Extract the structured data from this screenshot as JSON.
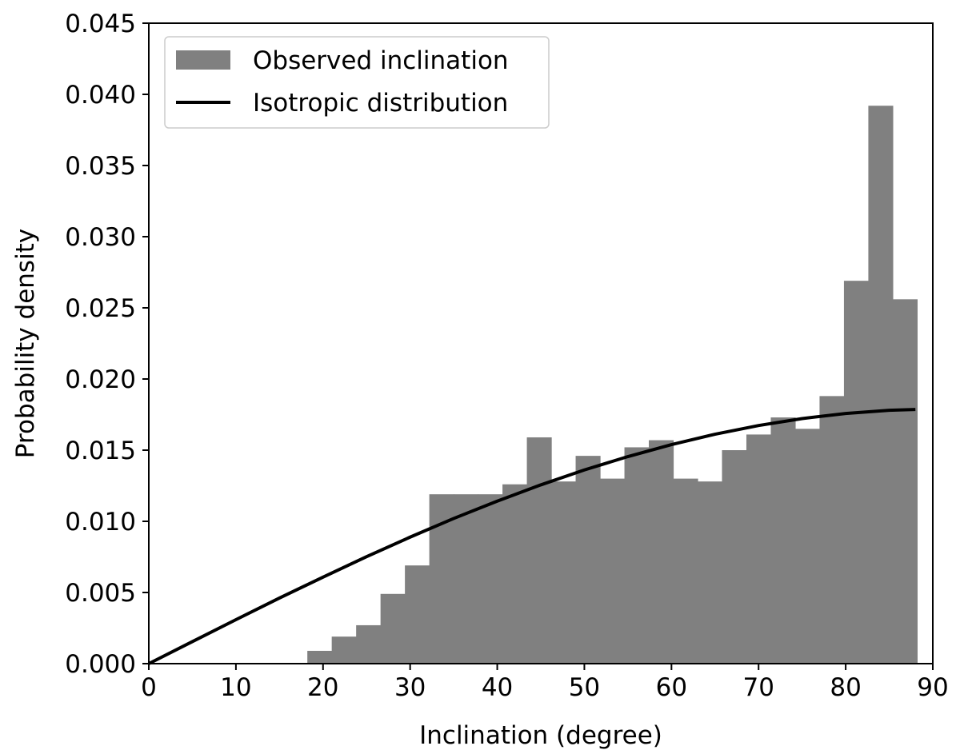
{
  "chart_data": {
    "type": "bar",
    "title": "",
    "xlabel": "Inclination (degree)",
    "ylabel": "Probability density",
    "xlim": [
      0,
      90
    ],
    "ylim": [
      0,
      0.045
    ],
    "xticks": [
      0,
      10,
      20,
      30,
      40,
      50,
      60,
      70,
      80,
      90
    ],
    "xtick_labels": [
      "0",
      "10",
      "20",
      "30",
      "40",
      "50",
      "60",
      "70",
      "80",
      "90"
    ],
    "yticks": [
      0,
      0.005,
      0.01,
      0.015,
      0.02,
      0.025,
      0.03,
      0.035,
      0.04,
      0.045
    ],
    "ytick_labels": [
      "0.000",
      "0.005",
      "0.010",
      "0.015",
      "0.020",
      "0.025",
      "0.030",
      "0.035",
      "0.040",
      "0.045"
    ],
    "grid": false,
    "legend_position": "top-left",
    "legend": [
      {
        "label": "Observed inclination",
        "kind": "patch",
        "color": "#808080"
      },
      {
        "label": "Isotropic distribution",
        "kind": "line",
        "color": "#000000"
      }
    ],
    "histogram": {
      "series_name": "Observed inclination",
      "color": "#808080",
      "bin_width": 2.8,
      "bin_starts": [
        18.2,
        21.0,
        23.8,
        26.6,
        29.4,
        32.2,
        35.0,
        37.8,
        40.6,
        43.4,
        46.2,
        49.0,
        51.8,
        54.6,
        57.4,
        60.2,
        63.0,
        65.8,
        68.6,
        71.4,
        74.2,
        77.0,
        79.8,
        82.6,
        85.4
      ],
      "values": [
        0.0009,
        0.0019,
        0.0027,
        0.0049,
        0.0069,
        0.0119,
        0.0119,
        0.0119,
        0.0126,
        0.0159,
        0.0128,
        0.0146,
        0.013,
        0.0152,
        0.0157,
        0.013,
        0.0128,
        0.015,
        0.0161,
        0.0173,
        0.0165,
        0.0188,
        0.0269,
        0.0392,
        0.0256
      ]
    },
    "curve": {
      "series_name": "Isotropic distribution",
      "color": "#000000",
      "x": [
        0,
        5,
        10,
        15,
        20,
        25,
        30,
        35,
        40,
        45,
        50,
        55,
        60,
        65,
        70,
        75,
        80,
        85,
        88
      ],
      "y": [
        0.0,
        0.00155,
        0.00309,
        0.00461,
        0.00608,
        0.00752,
        0.00889,
        0.0102,
        0.01142,
        0.01256,
        0.01361,
        0.01455,
        0.01539,
        0.01612,
        0.01673,
        0.01722,
        0.01758,
        0.0178,
        0.01786
      ]
    }
  }
}
